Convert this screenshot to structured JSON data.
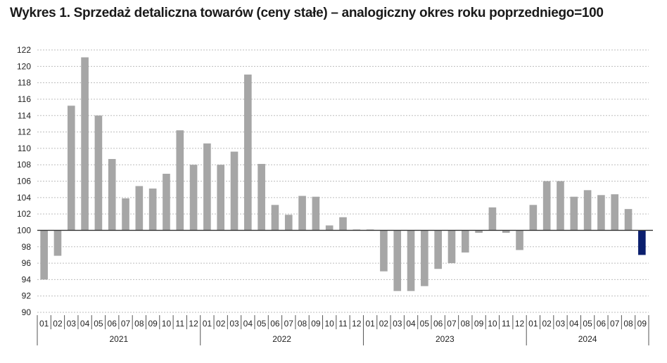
{
  "title": "Wykres 1. Sprzedaż detaliczna towarów (ceny stałe) – analogiczny okres roku poprzedniego=100",
  "chart_data": {
    "type": "bar",
    "baseline": 100,
    "ylim": [
      90,
      122
    ],
    "yticks": [
      "90",
      "92",
      "94",
      "96",
      "98",
      "100",
      "102",
      "104",
      "106",
      "108",
      "110",
      "112",
      "114",
      "116",
      "118",
      "120",
      "122"
    ],
    "grid": true,
    "years": [
      "2021",
      "2022",
      "2023",
      "2024"
    ],
    "categories": [
      "01",
      "02",
      "03",
      "04",
      "05",
      "06",
      "07",
      "08",
      "09",
      "10",
      "11",
      "12",
      "01",
      "02",
      "03",
      "04",
      "05",
      "06",
      "07",
      "08",
      "09",
      "10",
      "11",
      "12",
      "01",
      "02",
      "03",
      "04",
      "05",
      "06",
      "07",
      "08",
      "09",
      "10",
      "11",
      "12",
      "01",
      "02",
      "03",
      "04",
      "05",
      "06",
      "07",
      "08",
      "09"
    ],
    "values": [
      94.0,
      96.9,
      115.2,
      121.1,
      114.0,
      108.7,
      103.9,
      105.4,
      105.1,
      106.9,
      112.2,
      108.0,
      110.6,
      108.0,
      109.6,
      119.0,
      108.1,
      103.1,
      101.9,
      104.2,
      104.1,
      100.6,
      101.6,
      100.1,
      100.1,
      95.0,
      92.6,
      92.6,
      93.2,
      95.3,
      96.0,
      97.3,
      99.7,
      102.8,
      99.7,
      97.6,
      103.1,
      106.0,
      106.0,
      104.1,
      104.9,
      104.3,
      104.4,
      102.6,
      97.0
    ],
    "bar_color": "#a6a6a6",
    "highlight_color": "#0b1f6e",
    "highlight_index": 44
  }
}
